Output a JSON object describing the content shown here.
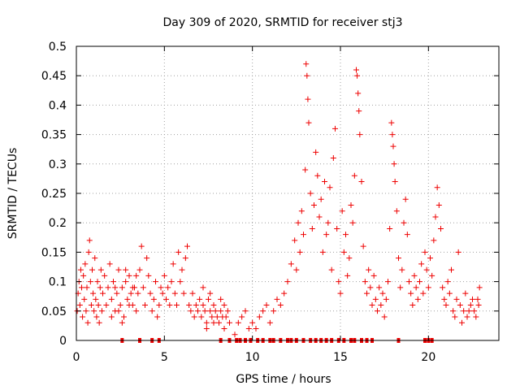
{
  "chart_data": {
    "type": "scatter",
    "title": "Day 309 of 2020, SRMTID for receiver stj3",
    "xlabel": "GPS time / hours",
    "ylabel": "SRMTID / TECUs",
    "xlim": [
      0,
      24
    ],
    "ylim": [
      0,
      0.5
    ],
    "xticks": [
      0,
      5,
      10,
      15,
      20
    ],
    "xtick_labels": [
      "0",
      "5",
      "10",
      "15",
      "20"
    ],
    "yticks": [
      0,
      0.05,
      0.1,
      0.15,
      0.2,
      0.25,
      0.3,
      0.35,
      0.4,
      0.45,
      0.5
    ],
    "ytick_labels": [
      "0",
      "0.05",
      "0.1",
      "0.15",
      "0.2",
      "0.25",
      "0.3",
      "0.35",
      "0.4",
      "0.45",
      "0.5"
    ],
    "grid": true,
    "marker": "+",
    "color": "#ee0000",
    "grid_color": "#a0a0a0",
    "series": [
      {
        "name": "SRMTID",
        "points": [
          [
            0.05,
            0.05
          ],
          [
            0.1,
            0.08
          ],
          [
            0.15,
            0.1
          ],
          [
            0.2,
            0.06
          ],
          [
            0.25,
            0.12
          ],
          [
            0.3,
            0.09
          ],
          [
            0.35,
            0.04
          ],
          [
            0.4,
            0.11
          ],
          [
            0.45,
            0.07
          ],
          [
            0.5,
            0.13
          ],
          [
            0.55,
            0.05
          ],
          [
            0.6,
            0.09
          ],
          [
            0.65,
            0.03
          ],
          [
            0.7,
            0.15
          ],
          [
            0.75,
            0.17
          ],
          [
            0.8,
            0.1
          ],
          [
            0.85,
            0.06
          ],
          [
            0.9,
            0.12
          ],
          [
            0.95,
            0.08
          ],
          [
            1.0,
            0.05
          ],
          [
            1.05,
            0.14
          ],
          [
            1.1,
            0.07
          ],
          [
            1.15,
            0.04
          ],
          [
            1.2,
            0.1
          ],
          [
            1.25,
            0.06
          ],
          [
            1.3,
            0.03
          ],
          [
            1.35,
            0.09
          ],
          [
            1.4,
            0.12
          ],
          [
            1.45,
            0.05
          ],
          [
            1.5,
            0.08
          ],
          [
            1.6,
            0.11
          ],
          [
            1.7,
            0.06
          ],
          [
            1.8,
            0.09
          ],
          [
            1.9,
            0.13
          ],
          [
            2.0,
            0.07
          ],
          [
            2.1,
            0.1
          ],
          [
            2.2,
            0.05
          ],
          [
            2.3,
            0.08
          ],
          [
            2.4,
            0.12
          ],
          [
            2.5,
            0.06
          ],
          [
            2.6,
            0.09
          ],
          [
            2.7,
            0.04
          ],
          [
            2.8,
            0.1
          ],
          [
            2.9,
            0.07
          ],
          [
            3.0,
            0.11
          ],
          [
            3.1,
            0.08
          ],
          [
            3.2,
            0.06
          ],
          [
            3.3,
            0.09
          ],
          [
            3.4,
            0.05
          ],
          [
            3.5,
            0.08
          ],
          [
            3.6,
            0.12
          ],
          [
            3.7,
            0.16
          ],
          [
            3.8,
            0.09
          ],
          [
            3.9,
            0.06
          ],
          [
            4.0,
            0.14
          ],
          [
            4.1,
            0.11
          ],
          [
            4.2,
            0.08
          ],
          [
            4.3,
            0.05
          ],
          [
            4.4,
            0.07
          ],
          [
            4.5,
            0.1
          ],
          [
            4.6,
            0.04
          ],
          [
            4.7,
            0.06
          ],
          [
            4.8,
            0.09
          ],
          [
            4.9,
            0.08
          ],
          [
            5.0,
            0.11
          ],
          [
            5.1,
            0.07
          ],
          [
            5.2,
            0.09
          ],
          [
            5.3,
            0.06
          ],
          [
            5.4,
            0.1
          ],
          [
            5.5,
            0.13
          ],
          [
            5.6,
            0.08
          ],
          [
            5.7,
            0.06
          ],
          [
            5.8,
            0.15
          ],
          [
            5.9,
            0.1
          ],
          [
            6.0,
            0.12
          ],
          [
            6.1,
            0.08
          ],
          [
            6.2,
            0.14
          ],
          [
            6.3,
            0.16
          ],
          [
            6.4,
            0.06
          ],
          [
            6.5,
            0.05
          ],
          [
            6.6,
            0.08
          ],
          [
            6.7,
            0.04
          ],
          [
            6.8,
            0.06
          ],
          [
            6.9,
            0.05
          ],
          [
            7.0,
            0.07
          ],
          [
            7.1,
            0.04
          ],
          [
            7.2,
            0.06
          ],
          [
            7.3,
            0.05
          ],
          [
            7.4,
            0.03
          ],
          [
            7.5,
            0.07
          ],
          [
            7.6,
            0.05
          ],
          [
            7.7,
            0.04
          ],
          [
            7.8,
            0.06
          ],
          [
            7.9,
            0.05
          ],
          [
            8.0,
            0.04
          ],
          [
            8.1,
            0.03
          ],
          [
            8.2,
            0.05
          ],
          [
            8.3,
            0.04
          ],
          [
            8.4,
            0.02
          ],
          [
            8.5,
            0.04
          ],
          [
            8.6,
            0.05
          ],
          [
            8.7,
            0.03
          ],
          [
            9.0,
            0.01
          ],
          [
            9.2,
            0.03
          ],
          [
            9.4,
            0.04
          ],
          [
            9.6,
            0.05
          ],
          [
            9.8,
            0.02
          ],
          [
            10.0,
            0.03
          ],
          [
            10.2,
            0.02
          ],
          [
            10.4,
            0.04
          ],
          [
            10.6,
            0.05
          ],
          [
            10.8,
            0.06
          ],
          [
            11.0,
            0.03
          ],
          [
            11.2,
            0.05
          ],
          [
            11.4,
            0.07
          ],
          [
            11.6,
            0.06
          ],
          [
            11.8,
            0.08
          ],
          [
            12.0,
            0.1
          ],
          [
            12.2,
            0.13
          ],
          [
            12.4,
            0.17
          ],
          [
            12.5,
            0.12
          ],
          [
            12.6,
            0.2
          ],
          [
            12.7,
            0.15
          ],
          [
            12.8,
            0.22
          ],
          [
            12.9,
            0.18
          ],
          [
            13.0,
            0.29
          ],
          [
            13.05,
            0.47
          ],
          [
            13.1,
            0.45
          ],
          [
            13.15,
            0.41
          ],
          [
            13.2,
            0.37
          ],
          [
            13.3,
            0.25
          ],
          [
            13.4,
            0.19
          ],
          [
            13.5,
            0.23
          ],
          [
            13.6,
            0.32
          ],
          [
            13.7,
            0.28
          ],
          [
            13.8,
            0.21
          ],
          [
            13.9,
            0.24
          ],
          [
            14.0,
            0.15
          ],
          [
            14.1,
            0.27
          ],
          [
            14.2,
            0.18
          ],
          [
            14.3,
            0.2
          ],
          [
            14.4,
            0.26
          ],
          [
            14.5,
            0.12
          ],
          [
            14.6,
            0.31
          ],
          [
            14.7,
            0.36
          ],
          [
            14.8,
            0.19
          ],
          [
            14.9,
            0.1
          ],
          [
            15.0,
            0.08
          ],
          [
            15.1,
            0.22
          ],
          [
            15.2,
            0.15
          ],
          [
            15.3,
            0.18
          ],
          [
            15.4,
            0.11
          ],
          [
            15.5,
            0.14
          ],
          [
            15.6,
            0.23
          ],
          [
            15.7,
            0.2
          ],
          [
            15.8,
            0.28
          ],
          [
            15.9,
            0.46
          ],
          [
            15.95,
            0.45
          ],
          [
            16.0,
            0.42
          ],
          [
            16.05,
            0.39
          ],
          [
            16.1,
            0.35
          ],
          [
            16.2,
            0.27
          ],
          [
            16.3,
            0.16
          ],
          [
            16.4,
            0.1
          ],
          [
            16.5,
            0.08
          ],
          [
            16.6,
            0.12
          ],
          [
            16.7,
            0.09
          ],
          [
            16.8,
            0.06
          ],
          [
            16.9,
            0.11
          ],
          [
            17.0,
            0.07
          ],
          [
            17.1,
            0.05
          ],
          [
            17.2,
            0.09
          ],
          [
            17.3,
            0.06
          ],
          [
            17.4,
            0.08
          ],
          [
            17.5,
            0.04
          ],
          [
            17.6,
            0.07
          ],
          [
            17.7,
            0.1
          ],
          [
            17.8,
            0.19
          ],
          [
            17.9,
            0.37
          ],
          [
            17.95,
            0.35
          ],
          [
            18.0,
            0.33
          ],
          [
            18.05,
            0.3
          ],
          [
            18.1,
            0.27
          ],
          [
            18.2,
            0.22
          ],
          [
            18.3,
            0.14
          ],
          [
            18.4,
            0.09
          ],
          [
            18.5,
            0.12
          ],
          [
            18.6,
            0.2
          ],
          [
            18.7,
            0.24
          ],
          [
            18.8,
            0.18
          ],
          [
            18.9,
            0.1
          ],
          [
            19.0,
            0.08
          ],
          [
            19.1,
            0.06
          ],
          [
            19.2,
            0.11
          ],
          [
            19.3,
            0.09
          ],
          [
            19.4,
            0.07
          ],
          [
            19.5,
            0.1
          ],
          [
            19.6,
            0.13
          ],
          [
            19.7,
            0.08
          ],
          [
            19.8,
            0.15
          ],
          [
            19.9,
            0.12
          ],
          [
            20.0,
            0.09
          ],
          [
            20.1,
            0.14
          ],
          [
            20.2,
            0.11
          ],
          [
            20.3,
            0.17
          ],
          [
            20.4,
            0.21
          ],
          [
            20.5,
            0.26
          ],
          [
            20.6,
            0.23
          ],
          [
            20.7,
            0.19
          ],
          [
            20.8,
            0.09
          ],
          [
            20.9,
            0.07
          ],
          [
            21.0,
            0.06
          ],
          [
            21.2,
            0.08
          ],
          [
            21.4,
            0.05
          ],
          [
            21.6,
            0.07
          ],
          [
            21.8,
            0.06
          ],
          [
            22.0,
            0.05
          ],
          [
            22.2,
            0.04
          ],
          [
            22.4,
            0.06
          ],
          [
            22.6,
            0.05
          ],
          [
            22.8,
            0.07
          ],
          [
            22.9,
            0.09
          ],
          [
            21.1,
            0.1
          ],
          [
            21.3,
            0.12
          ],
          [
            21.5,
            0.04
          ],
          [
            21.7,
            0.15
          ],
          [
            21.9,
            0.03
          ],
          [
            22.1,
            0.08
          ],
          [
            22.3,
            0.05
          ],
          [
            22.5,
            0.07
          ],
          [
            22.7,
            0.04
          ],
          [
            22.85,
            0.06
          ],
          [
            2.0,
            0.04
          ],
          [
            2.2,
            0.09
          ],
          [
            2.4,
            0.05
          ],
          [
            2.6,
            0.03
          ],
          [
            2.8,
            0.12
          ],
          [
            3.0,
            0.06
          ],
          [
            3.2,
            0.09
          ],
          [
            3.4,
            0.11
          ],
          [
            7.2,
            0.09
          ],
          [
            7.4,
            0.02
          ],
          [
            7.6,
            0.08
          ],
          [
            7.8,
            0.03
          ],
          [
            8.2,
            0.07
          ],
          [
            8.4,
            0.06
          ],
          [
            2.6,
            0.0
          ],
          [
            3.6,
            0.0
          ],
          [
            4.3,
            0.0
          ],
          [
            4.7,
            0.0
          ],
          [
            8.2,
            0.0
          ],
          [
            8.7,
            0.0
          ],
          [
            9.1,
            0.0
          ],
          [
            9.3,
            0.0
          ],
          [
            9.6,
            0.0
          ],
          [
            9.9,
            0.0
          ],
          [
            10.3,
            0.0
          ],
          [
            10.6,
            0.0
          ],
          [
            11.0,
            0.0
          ],
          [
            11.2,
            0.0
          ],
          [
            11.6,
            0.0
          ],
          [
            12.0,
            0.0
          ],
          [
            12.2,
            0.0
          ],
          [
            12.5,
            0.0
          ],
          [
            12.9,
            0.0
          ],
          [
            13.3,
            0.0
          ],
          [
            13.6,
            0.0
          ],
          [
            13.9,
            0.0
          ],
          [
            14.2,
            0.0
          ],
          [
            14.5,
            0.0
          ],
          [
            14.9,
            0.0
          ],
          [
            15.2,
            0.0
          ],
          [
            15.6,
            0.0
          ],
          [
            15.8,
            0.0
          ],
          [
            16.2,
            0.0
          ],
          [
            16.5,
            0.0
          ],
          [
            16.8,
            0.0
          ],
          [
            18.3,
            0.0
          ],
          [
            19.8,
            0.0
          ],
          [
            20.0,
            0.0
          ],
          [
            20.2,
            0.0
          ]
        ]
      }
    ]
  }
}
